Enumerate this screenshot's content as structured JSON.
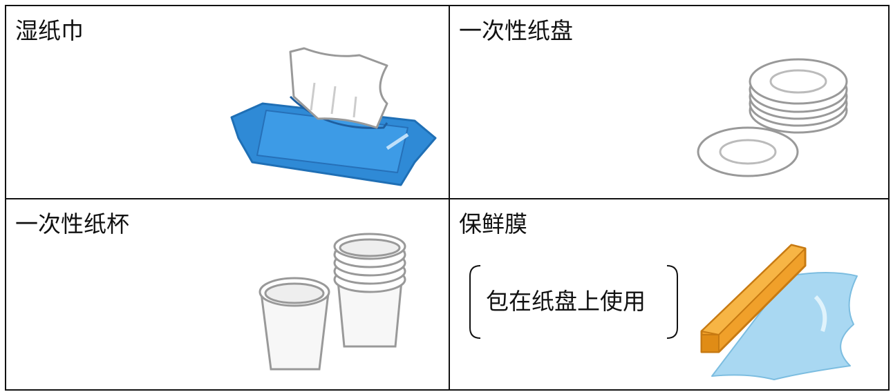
{
  "table": {
    "rows": [
      [
        {
          "label": "湿纸巾"
        },
        {
          "label": "一次性纸盘"
        }
      ],
      [
        {
          "label": "一次性纸杯"
        },
        {
          "label": "保鲜膜",
          "note": "包在纸盘上使用"
        }
      ]
    ]
  }
}
